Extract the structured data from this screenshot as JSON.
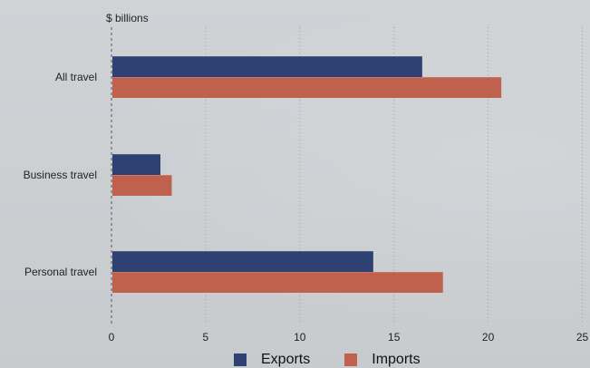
{
  "chart_data": {
    "type": "bar",
    "orientation": "horizontal",
    "unit_label": "$ billions",
    "categories": [
      "All travel",
      "Business travel",
      "Personal travel"
    ],
    "series": [
      {
        "name": "Exports",
        "color": "#2f4172",
        "values": [
          16.5,
          2.6,
          13.9
        ]
      },
      {
        "name": "Imports",
        "color": "#c0614e",
        "values": [
          20.7,
          3.2,
          17.6
        ]
      }
    ],
    "x_ticks": [
      "0",
      "5",
      "10",
      "15",
      "20",
      "25"
    ],
    "xlim": [
      0,
      25
    ],
    "grid": "vertical dotted",
    "legend_position": "bottom"
  }
}
